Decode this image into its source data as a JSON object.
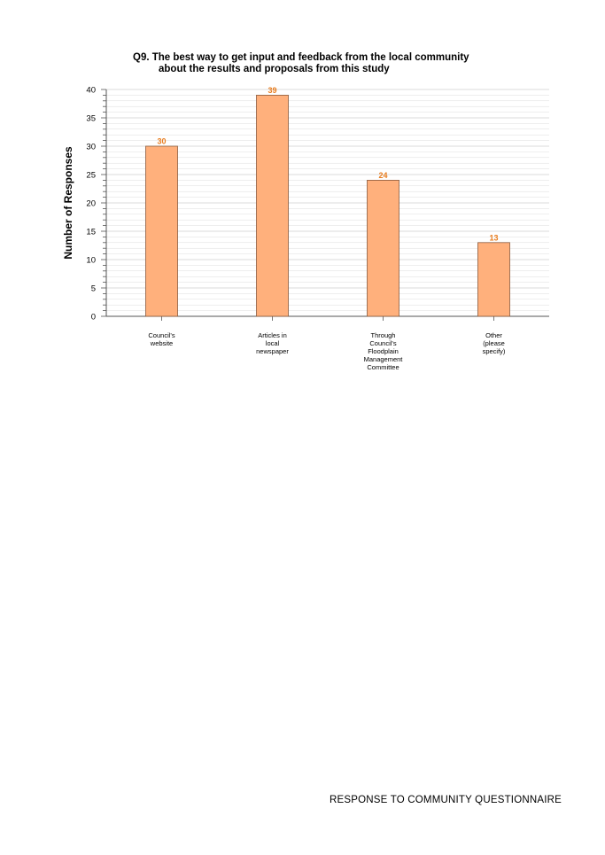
{
  "chart_data": {
    "type": "bar",
    "title": "Q9. The best way to get input and feedback from the local community",
    "subtitle": "about the results and proposals from this study",
    "ylabel": "Number of Responses",
    "xlabel": "",
    "ylim": [
      0,
      40
    ],
    "yticks": [
      0,
      5,
      10,
      15,
      20,
      25,
      30,
      35,
      40
    ],
    "grid": true,
    "categories": [
      [
        "Council's",
        "website"
      ],
      [
        "Articles in",
        "local",
        "newspaper"
      ],
      [
        "Through",
        "Council's",
        "Floodplain",
        "Management",
        "Committee"
      ],
      [
        "Other",
        "(please",
        "specify)"
      ]
    ],
    "values": [
      30,
      39,
      24,
      13
    ],
    "colors": {
      "bar": "#ffb07c",
      "bar_edge": "#8a5a3c",
      "data_label": "#e87c1e",
      "grid": "#dcdcdc"
    }
  },
  "footer": {
    "text": "RESPONSE TO COMMUNITY QUESTIONNAIRE"
  }
}
